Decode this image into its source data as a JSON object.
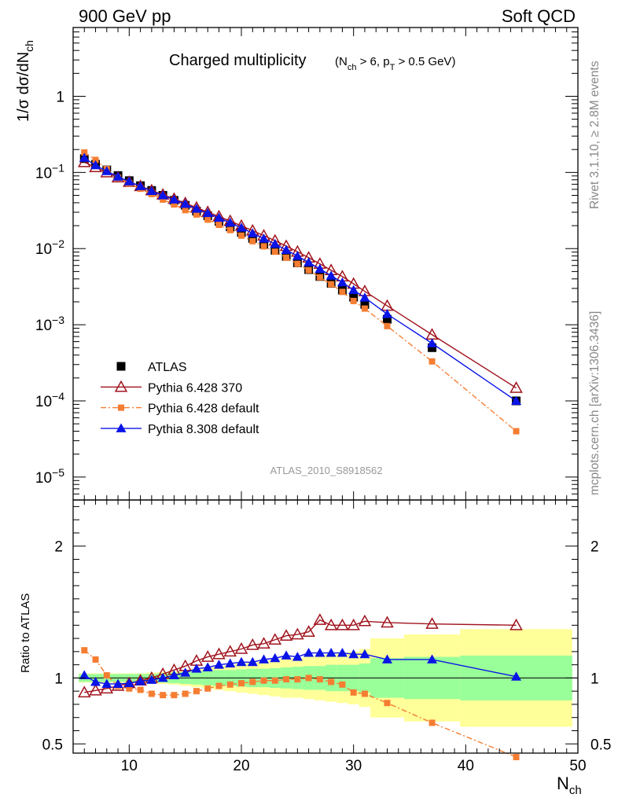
{
  "header": {
    "left": "900 GeV pp",
    "right": "Soft QCD"
  },
  "side_labels": {
    "rivet": "Rivet 3.1.10, ≥ 2.8M events",
    "mcplots": "mcplots.cern.ch [arXiv:1306.3436]"
  },
  "colors": {
    "atlas": "#000000",
    "p6_370": "#a0141e",
    "p6_def": "#f57d32",
    "p8": "#0a14e6",
    "band_inner": "#99ff99",
    "band_outer": "#ffff99"
  },
  "chart_data": [
    {
      "type": "line",
      "panel": "main",
      "title_main": "Charged multiplicity",
      "title_sub": "(N_ch > 6, p_T > 0.5 GeV)",
      "analysis_label": "ATLAS_2010_S8918562",
      "ylabel": "1/σ dσ/dN_ch",
      "yscale": "log",
      "xlim": [
        5,
        50
      ],
      "ylim": [
        5e-06,
        8
      ],
      "y_ticks": [
        {
          "value": 1,
          "label": "1"
        },
        {
          "value": 0.1,
          "base": "10",
          "exp": "−1"
        },
        {
          "value": 0.01,
          "base": "10",
          "exp": "−2"
        },
        {
          "value": 0.001,
          "base": "10",
          "exp": "−3"
        },
        {
          "value": 0.0001,
          "base": "10",
          "exp": "−4"
        },
        {
          "value": 1e-05,
          "base": "10",
          "exp": "−5"
        }
      ],
      "x": [
        6,
        7,
        8,
        9,
        10,
        11,
        12,
        13,
        14,
        15,
        16,
        17,
        18,
        19,
        20,
        21,
        22,
        23,
        24,
        25,
        26,
        27,
        28,
        29,
        30,
        31,
        33,
        37,
        44.5
      ],
      "legend_position": "lower-left",
      "series": [
        {
          "name": "ATLAS",
          "key": "atlas",
          "marker": "square",
          "line": "none",
          "values": [
            0.152,
            0.128,
            0.108,
            0.091,
            0.078,
            0.067,
            0.058,
            0.05,
            0.043,
            0.037,
            0.031,
            0.027,
            0.0228,
            0.0193,
            0.0163,
            0.0136,
            0.0114,
            0.0095,
            0.0079,
            0.0065,
            0.0053,
            0.0043,
            0.0035,
            0.00285,
            0.0023,
            0.00185,
            0.00118,
            0.0005,
            0.0001
          ]
        },
        {
          "name": "Pythia 6.428 370",
          "key": "p6_370",
          "marker": "triangle-open",
          "line": "solid",
          "values": [
            0.136,
            0.117,
            0.1,
            0.086,
            0.075,
            0.066,
            0.058,
            0.051,
            0.045,
            0.0395,
            0.0345,
            0.0302,
            0.0264,
            0.023,
            0.0199,
            0.0172,
            0.0148,
            0.0127,
            0.0108,
            0.0091,
            0.0076,
            0.0063,
            0.0052,
            0.0043,
            0.00345,
            0.00275,
            0.00177,
            0.00074,
            0.000148
          ]
        },
        {
          "name": "Pythia 6.428 default",
          "key": "p6_def",
          "marker": "square-small",
          "line": "dashdot",
          "values": [
            0.183,
            0.146,
            0.111,
            0.085,
            0.072,
            0.061,
            0.052,
            0.044,
            0.038,
            0.032,
            0.028,
            0.024,
            0.0205,
            0.0175,
            0.0148,
            0.0125,
            0.0107,
            0.0091,
            0.0076,
            0.0063,
            0.0052,
            0.0042,
            0.0034,
            0.0027,
            0.00205,
            0.00163,
            0.00096,
            0.00033,
            4e-05
          ]
        },
        {
          "name": "Pythia 8.308 default",
          "key": "p8",
          "marker": "triangle",
          "line": "solid",
          "values": [
            0.155,
            0.124,
            0.104,
            0.088,
            0.076,
            0.066,
            0.057,
            0.05,
            0.044,
            0.0385,
            0.0333,
            0.0292,
            0.0253,
            0.0219,
            0.0188,
            0.0159,
            0.0135,
            0.0115,
            0.0096,
            0.008,
            0.0066,
            0.0054,
            0.0044,
            0.0036,
            0.00285,
            0.00227,
            0.00138,
            0.00057,
            0.0001
          ]
        }
      ]
    },
    {
      "type": "line",
      "panel": "ratio",
      "ylabel": "Ratio to ATLAS",
      "xlabel": "N_ch",
      "xlim": [
        5,
        50
      ],
      "ylim": [
        0.43,
        2.35
      ],
      "x_ticks": [
        10,
        20,
        30,
        40,
        50
      ],
      "y_ticks": [
        {
          "value": 0.5,
          "label": "0.5"
        },
        {
          "value": 1,
          "label": "1"
        },
        {
          "value": 2,
          "label": "2"
        }
      ],
      "x": [
        6,
        7,
        8,
        9,
        10,
        11,
        12,
        13,
        14,
        15,
        16,
        17,
        18,
        19,
        20,
        21,
        22,
        23,
        24,
        25,
        26,
        27,
        28,
        29,
        30,
        31,
        33,
        37,
        44.5
      ],
      "series": [
        {
          "name": "Pythia 6.428 370",
          "key": "p6_370",
          "marker": "triangle-open",
          "line": "solid",
          "values": [
            0.89,
            0.905,
            0.92,
            0.94,
            0.96,
            0.98,
            1.0,
            1.03,
            1.06,
            1.09,
            1.13,
            1.16,
            1.18,
            1.2,
            1.22,
            1.25,
            1.26,
            1.29,
            1.32,
            1.33,
            1.35,
            1.44,
            1.4,
            1.4,
            1.4,
            1.43,
            1.42,
            1.41,
            1.4
          ]
        },
        {
          "name": "Pythia 6.428 default",
          "key": "p6_def",
          "marker": "square-small",
          "line": "dashdot",
          "values": [
            1.21,
            1.14,
            1.02,
            0.94,
            0.92,
            0.91,
            0.88,
            0.87,
            0.87,
            0.88,
            0.9,
            0.92,
            0.94,
            0.95,
            0.96,
            0.97,
            0.98,
            0.98,
            0.99,
            0.99,
            1.0,
            0.99,
            0.97,
            0.95,
            0.89,
            0.88,
            0.81,
            0.66,
            0.4
          ]
        },
        {
          "name": "Pythia 8.308 default",
          "key": "p8",
          "marker": "triangle",
          "line": "solid",
          "values": [
            1.02,
            0.97,
            0.955,
            0.955,
            0.96,
            0.975,
            0.985,
            1.0,
            1.02,
            1.04,
            1.07,
            1.08,
            1.1,
            1.11,
            1.12,
            1.12,
            1.14,
            1.15,
            1.17,
            1.16,
            1.19,
            1.19,
            1.19,
            1.19,
            1.18,
            1.18,
            1.14,
            1.14,
            1.01
          ]
        }
      ],
      "uncertainty_bands": {
        "edges": [
          5.5,
          6.5,
          7.5,
          8.5,
          9.5,
          10.5,
          11.5,
          12.5,
          13.5,
          14.5,
          15.5,
          16.5,
          17.5,
          18.5,
          19.5,
          20.5,
          21.5,
          22.5,
          23.5,
          24.5,
          25.5,
          26.5,
          27.5,
          28.5,
          29.5,
          30.5,
          31.5,
          34.5,
          39.5,
          49.5
        ],
        "inner": [
          0.03,
          0.03,
          0.03,
          0.03,
          0.03,
          0.03,
          0.03,
          0.035,
          0.04,
          0.045,
          0.05,
          0.055,
          0.06,
          0.06,
          0.065,
          0.07,
          0.07,
          0.075,
          0.08,
          0.085,
          0.09,
          0.09,
          0.1,
          0.1,
          0.1,
          0.11,
          0.15,
          0.16,
          0.17
        ],
        "outer": [
          0.035,
          0.035,
          0.035,
          0.035,
          0.035,
          0.035,
          0.04,
          0.045,
          0.05,
          0.06,
          0.07,
          0.08,
          0.09,
          0.1,
          0.11,
          0.12,
          0.13,
          0.14,
          0.15,
          0.15,
          0.16,
          0.17,
          0.18,
          0.19,
          0.2,
          0.22,
          0.3,
          0.33,
          0.37
        ]
      }
    }
  ]
}
